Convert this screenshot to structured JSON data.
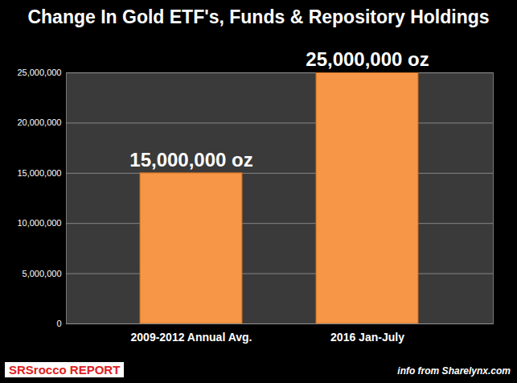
{
  "chart_data": {
    "type": "bar",
    "title": "Change In Gold ETF's, Funds & Repository Holdings",
    "categories": [
      "2009-2012 Annual Avg.",
      "2016 Jan-July"
    ],
    "values": [
      15000000,
      25000000
    ],
    "value_labels": [
      "15,000,000 oz",
      "25,000,000 oz"
    ],
    "color": "#f79646",
    "ylim": [
      0,
      25000000
    ],
    "yticks": [
      0,
      {
        "value": 5000000,
        "label": "5,000,000"
      },
      {
        "value": 10000000,
        "label": "10,000,000"
      },
      {
        "value": 15000000,
        "label": "15,000,000"
      },
      {
        "value": 20000000,
        "label": "20,000,000"
      },
      {
        "value": 25000000,
        "label": "25,000,000"
      }
    ],
    "grid": true,
    "data_labels": true,
    "annotations": [
      "SRSrocco REPORT",
      "info from Sharelynx.com"
    ]
  }
}
